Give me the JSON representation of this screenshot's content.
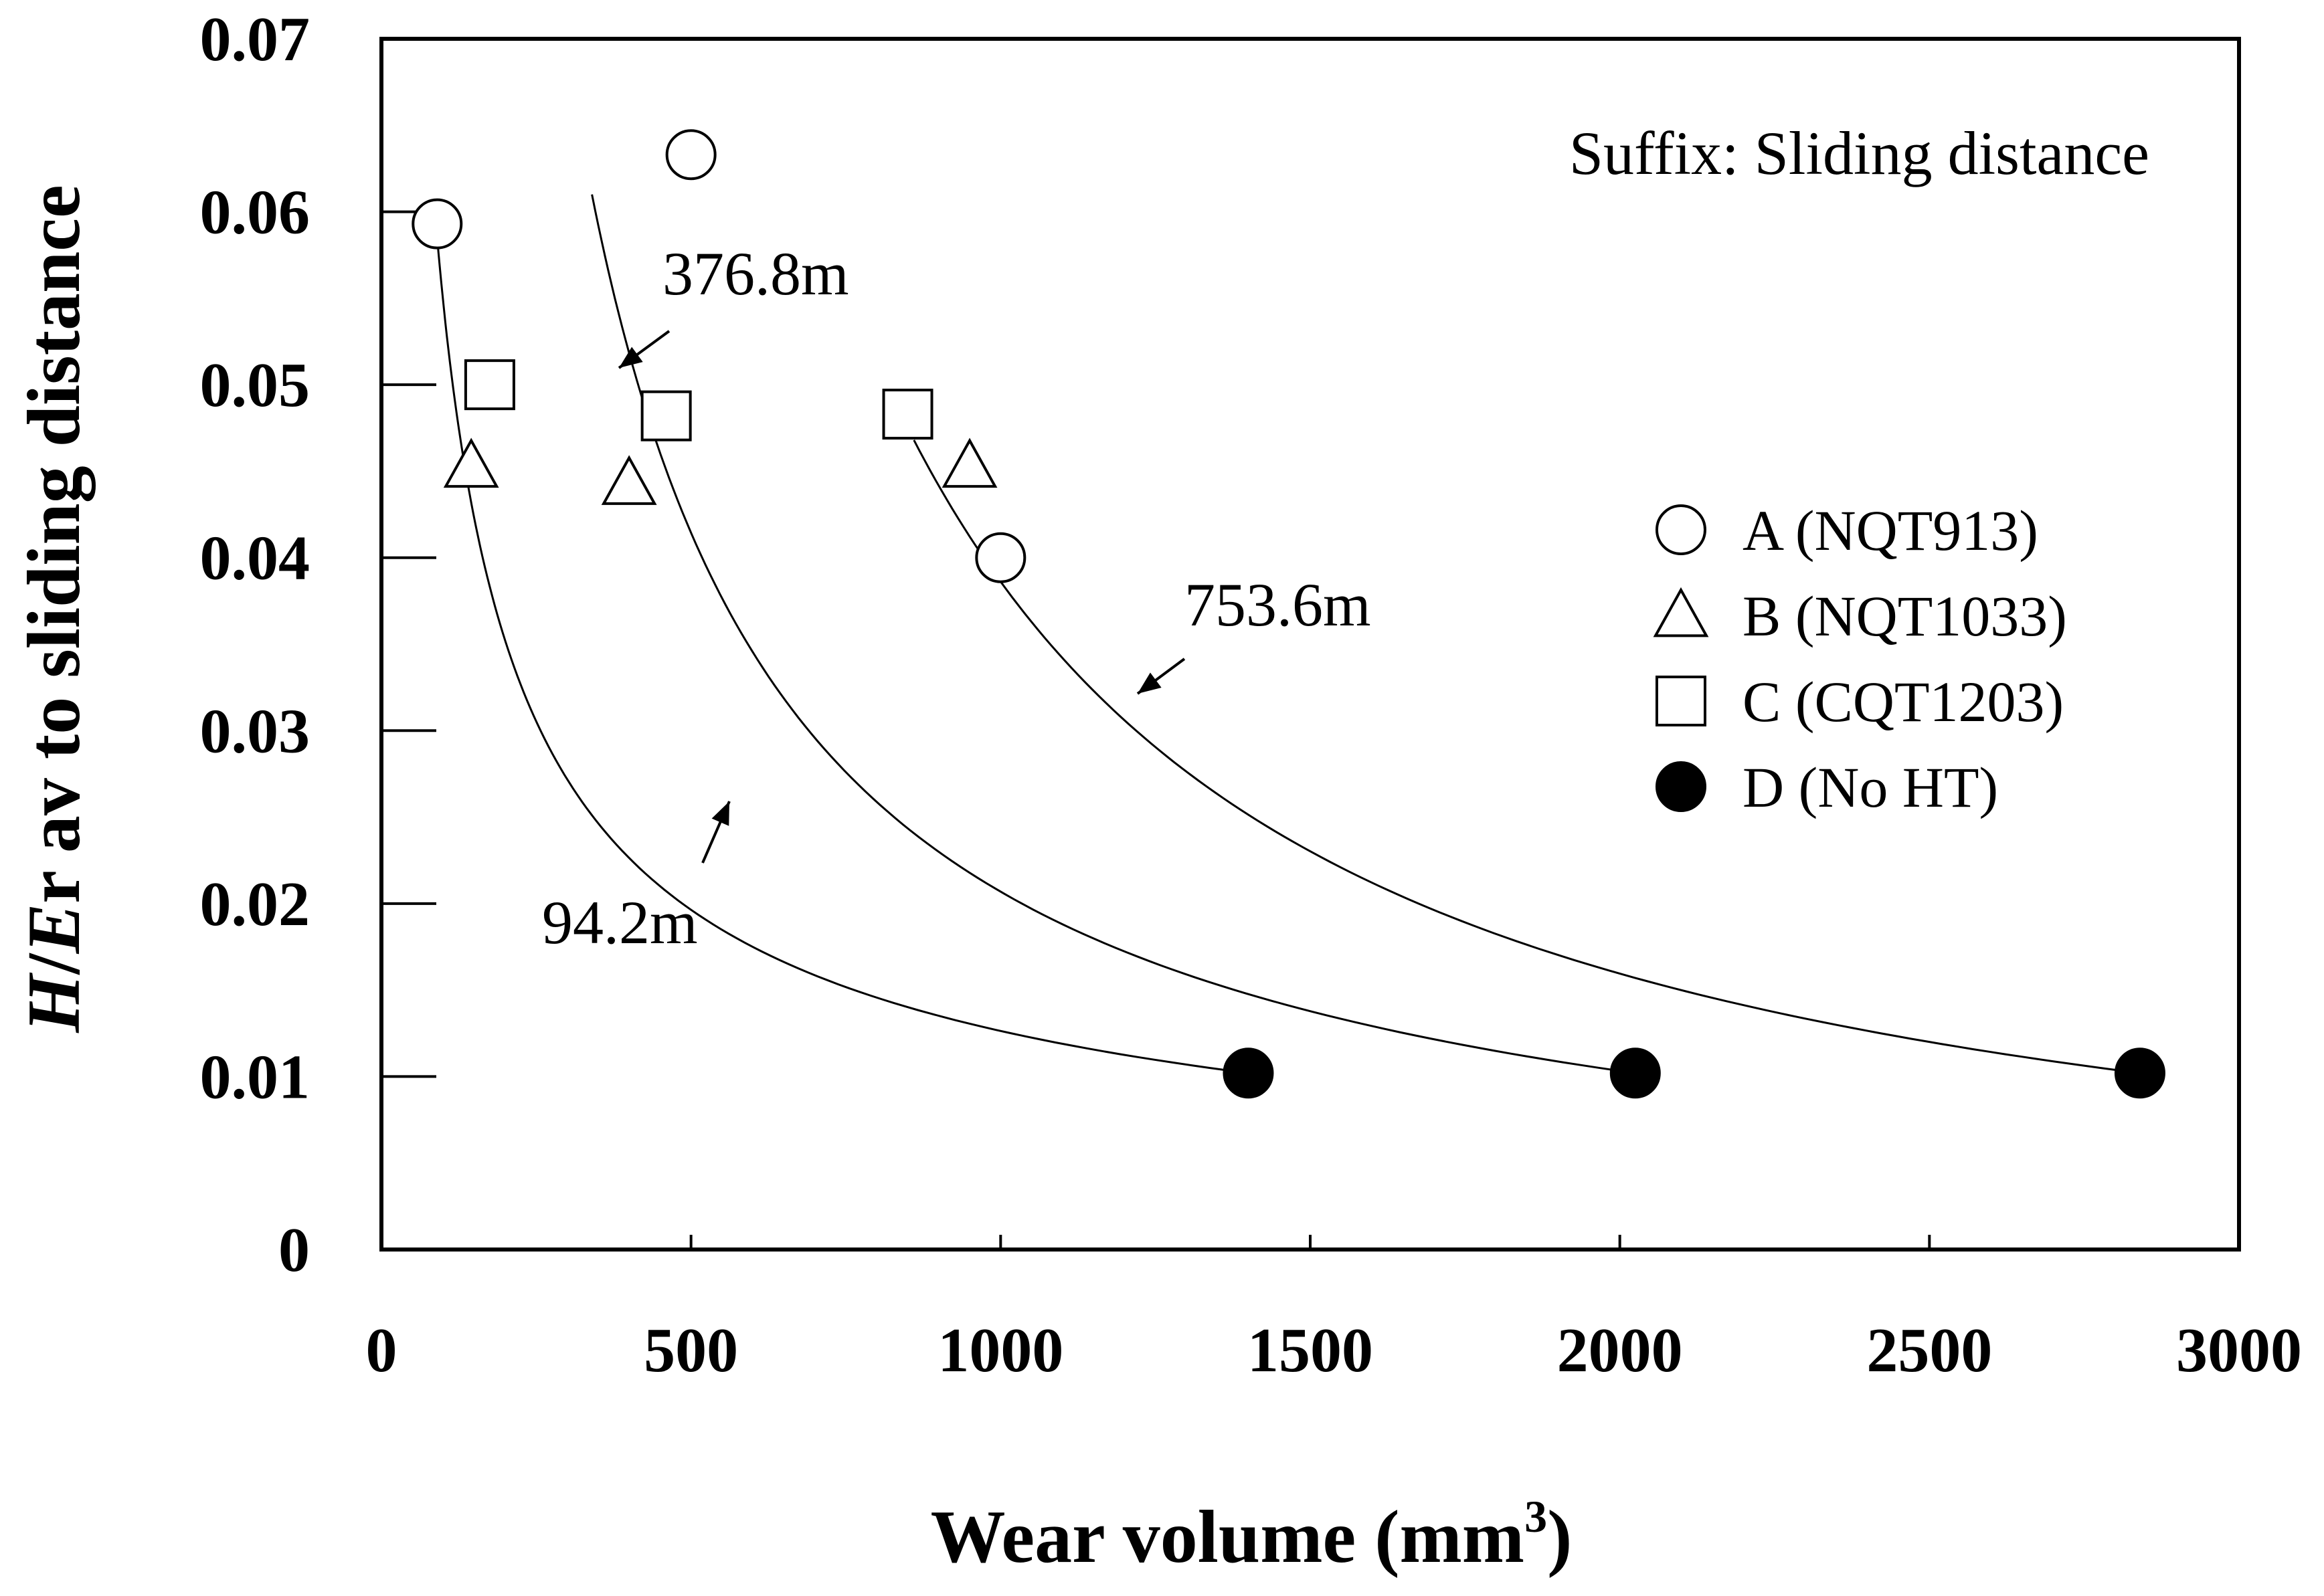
{
  "chart_data": {
    "type": "scatter",
    "xlabel": "Wear volume (mm",
    "xlabel_sup": "3",
    "xlabel_close": ")",
    "ylabel_italic1": "H",
    "ylabel_slash": "/",
    "ylabel_italic2": "E",
    "ylabel_rest": "r av to sliding distance",
    "xlim": [
      0,
      3000
    ],
    "ylim": [
      0,
      0.07
    ],
    "xticks": [
      0,
      500,
      1000,
      1500,
      2000,
      2500,
      3000
    ],
    "xtick_labels": [
      "0",
      "500",
      "1000",
      "1500",
      "2000",
      "2500",
      "3000"
    ],
    "yticks": [
      0,
      0.01,
      0.02,
      0.03,
      0.04,
      0.05,
      0.06,
      0.07
    ],
    "ytick_labels": [
      "0",
      "0.01",
      "0.02",
      "0.03",
      "0.04",
      "0.05",
      "0.06",
      "0.07"
    ],
    "grid": false,
    "note": "Suffix: Sliding distance",
    "legend_position": "right",
    "series": [
      {
        "name": "A (NQT913)",
        "marker": "circle-open",
        "points": [
          [
            90,
            0.0593
          ],
          [
            500,
            0.0633
          ],
          [
            1000,
            0.04
          ]
        ]
      },
      {
        "name": "B (NQT1033)",
        "marker": "triangle-open",
        "points": [
          [
            145,
            0.0453
          ],
          [
            400,
            0.0443
          ],
          [
            950,
            0.0453
          ]
        ]
      },
      {
        "name": "C (CQT1203)",
        "marker": "square-open",
        "points": [
          [
            175,
            0.05
          ],
          [
            460,
            0.0482
          ],
          [
            850,
            0.0483
          ]
        ]
      },
      {
        "name": "D (No HT)",
        "marker": "circle-filled",
        "points": [
          [
            1400,
            0.0102
          ],
          [
            2025,
            0.0102
          ],
          [
            2840,
            0.0102
          ]
        ]
      }
    ],
    "trend_curves": [
      {
        "label": "94.2m",
        "x_start": 90,
        "y_start": 0.0585,
        "x_end": 1400,
        "y_end": 0.0102
      },
      {
        "label": "376.8m",
        "x_start": 340,
        "y_start": 0.061,
        "x_end": 2025,
        "y_end": 0.0102
      },
      {
        "label": "753.6m",
        "x_start": 860,
        "y_start": 0.0468,
        "x_end": 2840,
        "y_end": 0.0102
      }
    ],
    "colors": {
      "axis": "#000000",
      "marker_fill_open": "#ffffff",
      "marker_fill_solid": "#000000"
    }
  }
}
